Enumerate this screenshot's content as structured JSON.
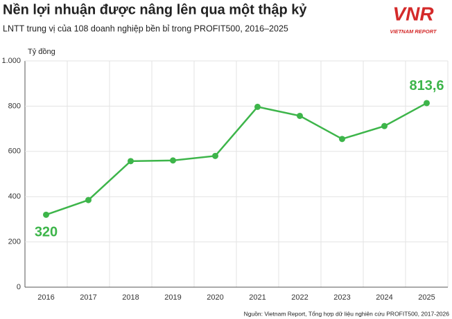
{
  "chart_data": {
    "type": "line",
    "title": "Nền lợi nhuận được nâng lên qua một thập kỷ",
    "subtitle": "LNTT trung vị của 108 doanh nghiệp bền bỉ trong PROFIT500, 2016–2025",
    "y_label": "Tỷ đồng",
    "source": "Nguồn: Vietnam Report, Tổng hợp dữ liệu nghiên cứu PROFIT500, 2017-2026",
    "logo": {
      "mark": "VNR",
      "text": "VIETNAM REPORT"
    },
    "categories": [
      "2016",
      "2017",
      "2018",
      "2019",
      "2020",
      "2021",
      "2022",
      "2023",
      "2024",
      "2025"
    ],
    "values": [
      320,
      385,
      557,
      560,
      580,
      797,
      757,
      655,
      712,
      813.6
    ],
    "value_labels": [
      "320",
      null,
      null,
      null,
      null,
      null,
      null,
      null,
      null,
      "813,6"
    ],
    "color": "#3db54a",
    "ylim": [
      0,
      1000
    ],
    "yticks": [
      0,
      200,
      400,
      600,
      800,
      {
        "value": 1000,
        "label": "1.000"
      }
    ],
    "grid": true
  }
}
